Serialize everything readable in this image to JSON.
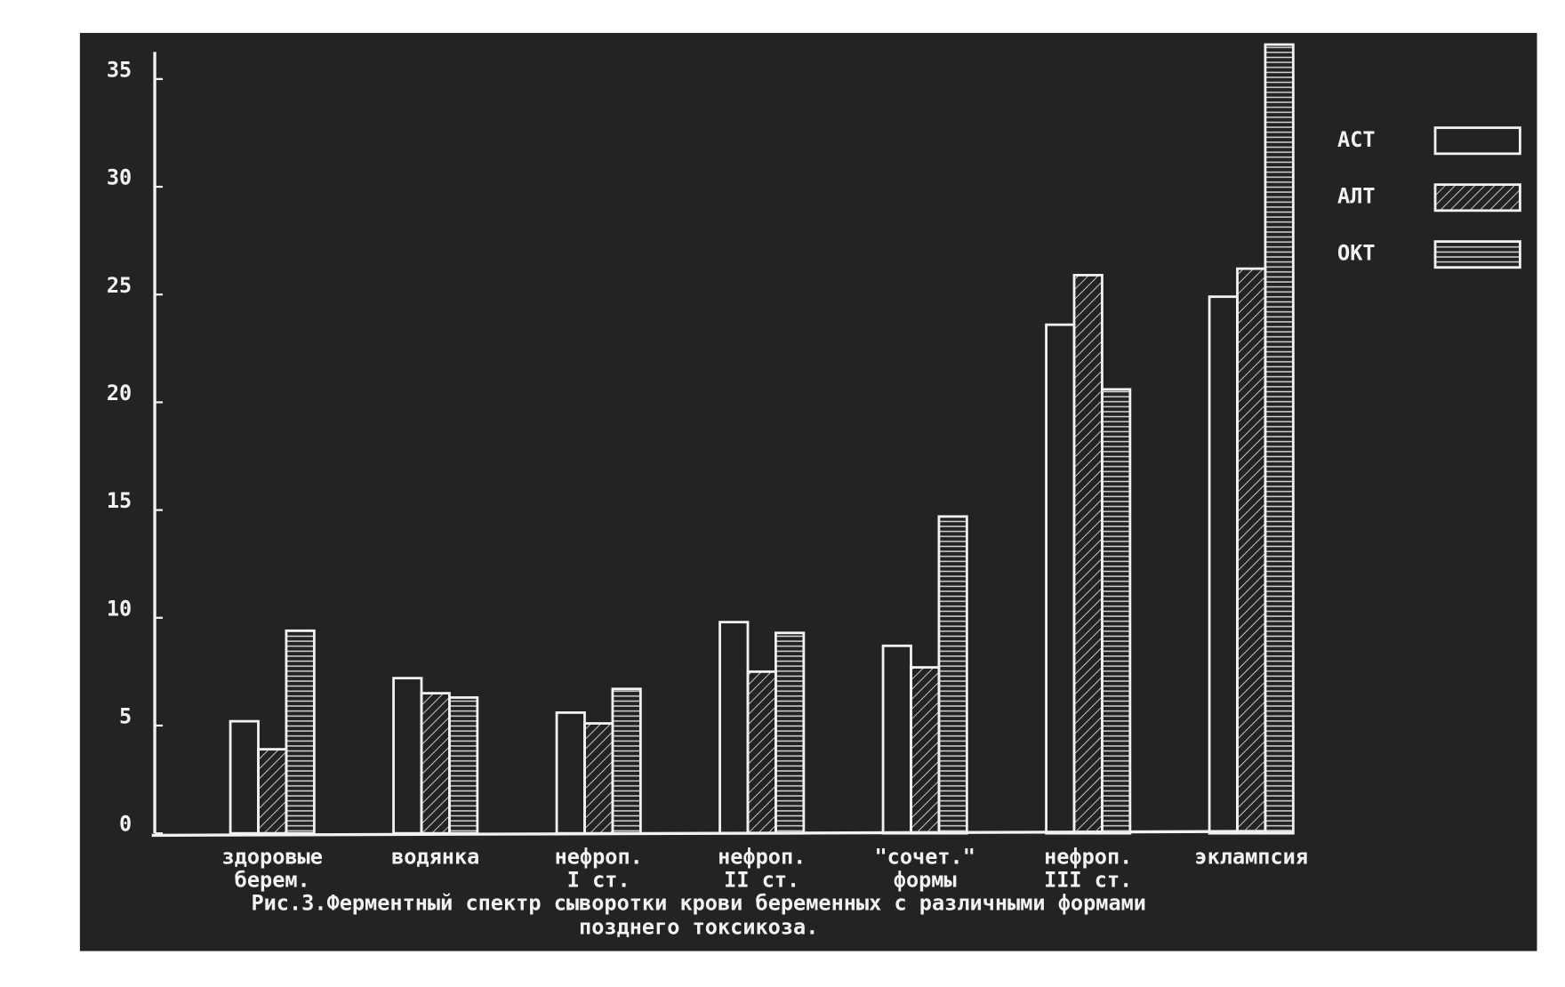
{
  "chart_data": {
    "type": "bar",
    "categories": [
      [
        "здоровые",
        "берем."
      ],
      [
        "водянка"
      ],
      [
        "нефроп.",
        "I ст."
      ],
      [
        "нефроп.",
        "II ст."
      ],
      [
        "\"сочет.\"",
        "формы"
      ],
      [
        "нефроп.",
        "III ст."
      ],
      [
        "эклампсия"
      ]
    ],
    "series": [
      {
        "name": "АСТ",
        "color": "#f2f2f2",
        "pattern": "none",
        "values": [
          5.2,
          7.2,
          5.6,
          9.8,
          8.7,
          23.6,
          24.9
        ]
      },
      {
        "name": "АЛТ",
        "color": "#f2f2f2",
        "pattern": "diagonal",
        "values": [
          3.9,
          6.5,
          5.1,
          7.5,
          7.7,
          25.9,
          26.2
        ]
      },
      {
        "name": "ОКТ",
        "color": "#f2f2f2",
        "pattern": "horizontal",
        "values": [
          9.4,
          6.3,
          6.7,
          9.3,
          14.7,
          20.6,
          36.6
        ]
      }
    ],
    "ylim": [
      0,
      37
    ],
    "yticks": [
      0,
      5,
      10,
      15,
      20,
      25,
      30,
      35
    ],
    "grid": false,
    "legend": "top-right",
    "caption": [
      "Рис.3.Ферментный спектр сыворотки крови беременных с различными формами",
      "позднего токсикоза."
    ]
  }
}
